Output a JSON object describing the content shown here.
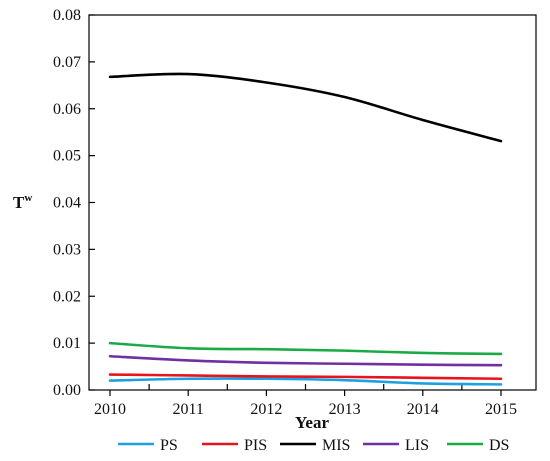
{
  "chart_data": {
    "type": "line",
    "xlabel": "Year",
    "ylabel": "T",
    "ylabel_superscript": "w",
    "x": [
      2010,
      2011,
      2012,
      2013,
      2014,
      2015
    ],
    "xlim": [
      2010,
      2015
    ],
    "ylim": [
      0,
      0.08
    ],
    "yticks": [
      "0.00",
      "0.01",
      "0.02",
      "0.03",
      "0.04",
      "0.05",
      "0.06",
      "0.07",
      "0.08"
    ],
    "xticks": [
      "2010",
      "2011",
      "2012",
      "2013",
      "2014",
      "2015"
    ],
    "grid": false,
    "legend_position": "bottom",
    "series": [
      {
        "name": "PS",
        "color": "#1ba1e2",
        "values": [
          0.002,
          0.0024,
          0.0024,
          0.0021,
          0.0014,
          0.0012
        ]
      },
      {
        "name": "PIS",
        "color": "#e8141c",
        "values": [
          0.0033,
          0.0031,
          0.0029,
          0.0028,
          0.0026,
          0.0024
        ]
      },
      {
        "name": "MIS",
        "color": "#000000",
        "values": [
          0.0668,
          0.0674,
          0.0656,
          0.0625,
          0.0576,
          0.0531
        ]
      },
      {
        "name": "LIS",
        "color": "#7030a0",
        "values": [
          0.0072,
          0.0063,
          0.0058,
          0.0056,
          0.0054,
          0.0053
        ]
      },
      {
        "name": "DS",
        "color": "#1aab47",
        "values": [
          0.01,
          0.0089,
          0.0087,
          0.0084,
          0.0079,
          0.0077
        ]
      }
    ]
  }
}
